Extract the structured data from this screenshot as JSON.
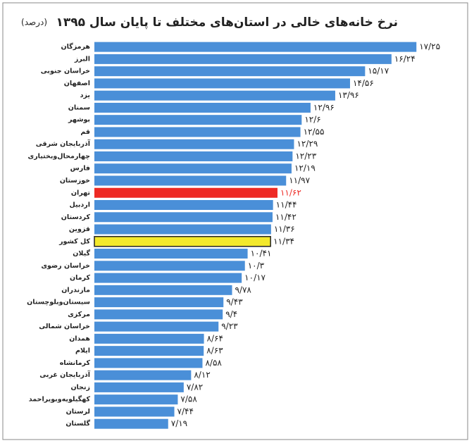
{
  "chart_data": {
    "type": "hbar",
    "title": "نرخ خانه‌های خالی در استان‌های مختلف تا پایان سال ۱۳۹۵",
    "subtitle": "(درصد)",
    "categories": [
      "هرمزگان",
      "البرز",
      "خراسان جنوبی",
      "اصفهان",
      "یزد",
      "سمنان",
      "بوشهر",
      "قم",
      "آذربایجان شرقی",
      "چهارمحال‌وبختیاری",
      "فارس",
      "خوزستان",
      "تهران",
      "اردبیل",
      "کردستان",
      "قزوین",
      "کل کشور",
      "گیلان",
      "خراسان رضوی",
      "کرمان",
      "مازندران",
      "سیستان‌وبلوچستان",
      "مرکزی",
      "خراسان شمالی",
      "همدان",
      "ایلام",
      "کرمانشاه",
      "آذربایجان غربی",
      "زنجان",
      "کهگیلویه‌وبویراحمد",
      "لرستان",
      "گلستان"
    ],
    "values": [
      17.25,
      16.24,
      15.17,
      14.56,
      13.96,
      12.96,
      12.6,
      12.55,
      12.29,
      12.23,
      12.19,
      11.97,
      11.62,
      11.44,
      11.42,
      11.36,
      11.34,
      10.41,
      10.3,
      10.17,
      9.78,
      9.43,
      9.4,
      9.23,
      8.64,
      8.63,
      8.58,
      8.12,
      7.82,
      7.58,
      7.44,
      7.19
    ],
    "value_labels": [
      "۱۷/۲۵",
      "۱۶/۲۴",
      "۱۵/۱۷",
      "۱۴/۵۶",
      "۱۳/۹۶",
      "۱۲/۹۶",
      "۱۲/۶",
      "۱۲/۵۵",
      "۱۲/۲۹",
      "۱۲/۲۳",
      "۱۲/۱۹",
      "۱۱/۹۷",
      "۱۱/۶۲",
      "۱۱/۴۴",
      "۱۱/۴۲",
      "۱۱/۳۶",
      "۱۱/۳۴",
      "۱۰/۴۱",
      "۱۰/۳",
      "۱۰/۱۷",
      "۹/۷۸",
      "۹/۴۳",
      "۹/۴",
      "۹/۲۳",
      "۸/۶۴",
      "۸/۶۳",
      "۸/۵۸",
      "۸/۱۲",
      "۷/۸۲",
      "۷/۵۸",
      "۷/۴۴",
      "۷/۱۹"
    ],
    "color": "#4a8fd8",
    "highlights": [
      {
        "index": 12,
        "color": "#ee2a24",
        "label_color": "#ee2a24"
      },
      {
        "index": 16,
        "color": "#f3e92c",
        "border": "#222222"
      }
    ],
    "xlim": [
      4.2,
      17.5
    ]
  }
}
